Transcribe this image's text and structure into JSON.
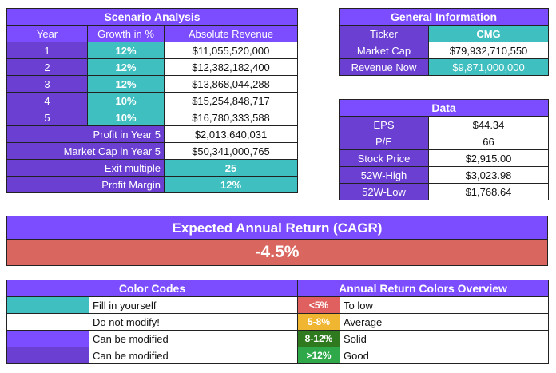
{
  "scenario": {
    "title": "Scenario Analysis",
    "headers": [
      "Year",
      "Growth in %",
      "Absolute Revenue"
    ],
    "rows": [
      {
        "year": "1",
        "growth": "12%",
        "revenue": "$11,055,520,000"
      },
      {
        "year": "2",
        "growth": "12%",
        "revenue": "$12,382,182,400"
      },
      {
        "year": "3",
        "growth": "12%",
        "revenue": "$13,868,044,288"
      },
      {
        "year": "4",
        "growth": "10%",
        "revenue": "$15,254,848,717"
      },
      {
        "year": "5",
        "growth": "10%",
        "revenue": "$16,780,333,588"
      }
    ],
    "profit_label": "Profit in Year 5",
    "profit_value": "$2,013,640,031",
    "mcap_label": "Market Cap in Year 5",
    "mcap_value": "$50,341,000,765",
    "exit_label": "Exit multiple",
    "exit_value": "25",
    "margin_label": "Profit Margin",
    "margin_value": "12%"
  },
  "general": {
    "title": "General Information",
    "ticker_label": "Ticker",
    "ticker_value": "CMG",
    "mcap_label": "Market Cap",
    "mcap_value": "$79,932,710,550",
    "revenue_label": "Revenue Now",
    "revenue_value": "$9,871,000,000"
  },
  "data": {
    "title": "Data",
    "rows": [
      {
        "label": "EPS",
        "value": "$44.34"
      },
      {
        "label": "P/E",
        "value": "66"
      },
      {
        "label": "Stock Price",
        "value": "$2,915.00"
      },
      {
        "label": "52W-High",
        "value": "$3,023.98"
      },
      {
        "label": "52W-Low",
        "value": "$1,768.64"
      }
    ]
  },
  "cagr": {
    "title": "Expected Annual Return (CAGR)",
    "value": "-4.5%",
    "color": "#d9675f"
  },
  "color_codes": {
    "title": "Color Codes",
    "rows": [
      {
        "swatch": "teal",
        "label": "Fill in yourself"
      },
      {
        "swatch": "white",
        "label": "Do not modify!"
      },
      {
        "swatch": "purple",
        "label": "Can be modified"
      },
      {
        "swatch": "dark-purple",
        "label": "Can be modified"
      }
    ]
  },
  "return_colors": {
    "title": "Annual Return Colors Overview",
    "rows": [
      {
        "range": "<5%",
        "label": "To low",
        "color": "#e06060"
      },
      {
        "range": "5-8%",
        "label": "Average",
        "color": "#f0b632"
      },
      {
        "range": "8-12%",
        "label": "Solid",
        "color": "#2f7a1f"
      },
      {
        "range": ">12%",
        "label": "Good",
        "color": "#2fa84a"
      }
    ]
  },
  "colors": {
    "purple": "#7c4dff",
    "dark_purple": "#6a3fd2",
    "teal": "#3fbfbf",
    "cagr_red": "#d9675f"
  }
}
